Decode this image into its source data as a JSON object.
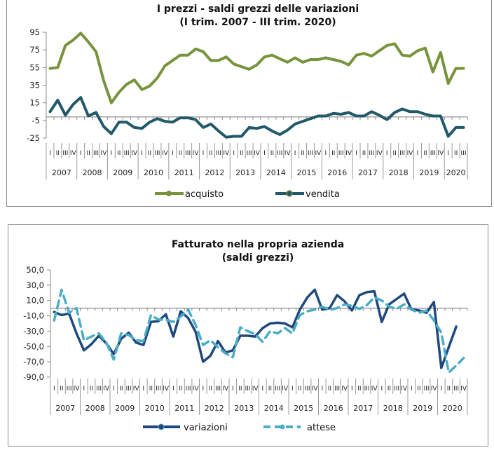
{
  "chart_data": [
    {
      "type": "line",
      "title": "I prezzi - saldi grezzi delle variazioni",
      "subtitle": "(I trim. 2007 - III trim. 2020)",
      "xlabel": "",
      "ylabel": "",
      "ylim": [
        -25,
        95
      ],
      "yticks": [
        95,
        75,
        55,
        35,
        15,
        -5,
        -25
      ],
      "ytick_labels": [
        "95",
        "75",
        "55",
        "35",
        "15",
        "-5",
        "-25"
      ],
      "axis_crossing": -1,
      "years": [
        "2007",
        "2008",
        "2009",
        "2010",
        "2011",
        "2012",
        "2013",
        "2014",
        "2015",
        "2016",
        "2017",
        "2018",
        "2019",
        "2020"
      ],
      "quarter_labels": [
        "I",
        "II",
        "III",
        "IV"
      ],
      "quarters_last_year": 3,
      "legend_position": "bottom",
      "series": [
        {
          "name": "acquisto",
          "color": "#77933c",
          "values": [
            54,
            55,
            80,
            86,
            94,
            84,
            73,
            40,
            15,
            27,
            36,
            41,
            30,
            34,
            43,
            57,
            63,
            69,
            69,
            76,
            73,
            63,
            63,
            67,
            59,
            56,
            53,
            58,
            67,
            69,
            65,
            61,
            66,
            61,
            64,
            64,
            66,
            64,
            62,
            58,
            69,
            71,
            68,
            74,
            80,
            82,
            69,
            68,
            74,
            77,
            50,
            72,
            37,
            54,
            54
          ]
        },
        {
          "name": "vendita",
          "color": "#215968",
          "values": [
            5,
            18,
            1,
            13,
            21,
            0,
            4,
            -12,
            -20,
            -7,
            -7,
            -13,
            -14,
            -7,
            -3,
            -6,
            -7,
            -2,
            -2,
            -4,
            -13,
            -9,
            -17,
            -24,
            -23,
            -23,
            -13,
            -14,
            -12,
            -17,
            -21,
            -16,
            -9,
            -6,
            -3,
            0,
            0,
            3,
            2,
            4,
            0,
            0,
            5,
            1,
            -4,
            4,
            8,
            5,
            5,
            2,
            0,
            0,
            -23,
            -13,
            -13
          ]
        }
      ]
    },
    {
      "type": "line",
      "title": "Fatturato nella propria azienda",
      "subtitle": "(saldi grezzi)",
      "xlabel": "",
      "ylabel": "",
      "ylim": [
        -90,
        50
      ],
      "yticks": [
        50,
        30,
        10,
        -10,
        -30,
        -50,
        -70,
        -90
      ],
      "ytick_labels": [
        "50,0",
        "30,0",
        "10,0",
        "-10,0",
        "-30,0",
        "-50,0",
        "-70,0",
        "-90,0"
      ],
      "axis_crossing": 0,
      "years": [
        "2007",
        "2008",
        "2009",
        "2010",
        "2011",
        "2012",
        "2013",
        "2014",
        "2015",
        "2016",
        "2017",
        "2018",
        "2019",
        "2020"
      ],
      "quarter_labels": [
        "I",
        "II",
        "III",
        "IV"
      ],
      "quarters_last_year": 4,
      "legend_position": "bottom",
      "series": [
        {
          "name": "variazioni",
          "color": "#1f497d",
          "dashed": false,
          "values": [
            -5,
            -9,
            -7,
            -33,
            -55,
            -47,
            -36,
            -46,
            -60,
            -40,
            -32,
            -45,
            -48,
            -18,
            -17,
            -8,
            -37,
            -4,
            -13,
            -31,
            -70,
            -62,
            -43,
            -58,
            -55,
            -36,
            -36,
            -37,
            -26,
            -20,
            -19,
            -20,
            -25,
            -2,
            14,
            24,
            -2,
            0,
            17,
            9,
            -3,
            17,
            21,
            22,
            -18,
            5,
            12,
            19,
            -2,
            -3,
            -6,
            8,
            -78,
            -51,
            -24,
            null
          ]
        },
        {
          "name": "attese",
          "color": "#4bacc6",
          "dashed": true,
          "values": [
            -16,
            24,
            -6,
            0,
            -42,
            -37,
            -33,
            -45,
            -67,
            -33,
            -35,
            -42,
            -43,
            -9,
            -15,
            -15,
            -18,
            -11,
            -2,
            -22,
            -48,
            -42,
            -51,
            -59,
            -64,
            -25,
            -30,
            -34,
            -44,
            -30,
            -33,
            -26,
            -33,
            -9,
            -4,
            -2,
            2,
            -2,
            0,
            5,
            3,
            -1,
            4,
            14,
            10,
            2,
            -1,
            5,
            -2,
            -6,
            -3,
            -16,
            -32,
            -84,
            -75,
            -65
          ]
        }
      ]
    }
  ]
}
